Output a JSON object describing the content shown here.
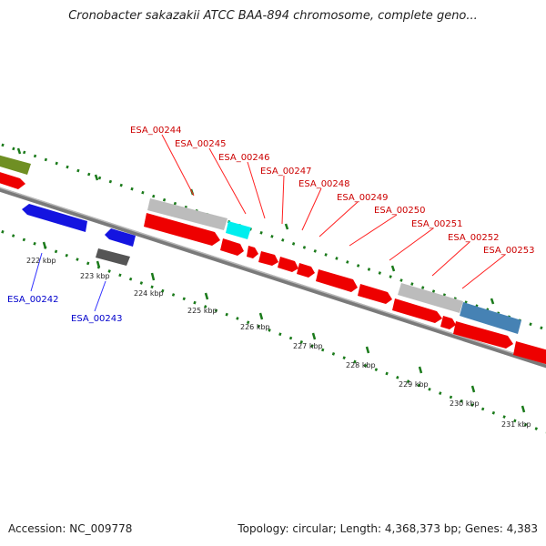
{
  "header": {
    "title": "Cronobacter sakazakii ATCC BAA-894 chromosome, complete geno..."
  },
  "footer": {
    "accession": "Accession: NC_009778",
    "summary": "Topology: circular; Length: 4,368,373 bp; Genes: 4,383"
  },
  "map": {
    "colors": {
      "forward_gene": "#ff0000",
      "reverse_gene": "#0000ee",
      "forward_label": "#cc0000",
      "reverse_label": "#0000cc",
      "backbone": "#808080",
      "tick": "#1a7a1a",
      "dotted_ring": "#1a7a1a"
    },
    "ruler_labels": [
      {
        "text": "222 kbp"
      },
      {
        "text": "223 kbp"
      },
      {
        "text": "224 kbp"
      },
      {
        "text": "225 kbp"
      },
      {
        "text": "226 kbp"
      },
      {
        "text": "227 kbp"
      },
      {
        "text": "228 kbp"
      },
      {
        "text": "229 kbp"
      },
      {
        "text": "230 kbp"
      },
      {
        "text": "231 kbp"
      }
    ],
    "forward_gene_labels": [
      {
        "text": "ESA_00244"
      },
      {
        "text": "ESA_00245"
      },
      {
        "text": "ESA_00246"
      },
      {
        "text": "ESA_00247"
      },
      {
        "text": "ESA_00248"
      },
      {
        "text": "ESA_00249"
      },
      {
        "text": "ESA_00250"
      },
      {
        "text": "ESA_00251"
      },
      {
        "text": "ESA_00252"
      },
      {
        "text": "ESA_00253"
      }
    ],
    "reverse_gene_labels": [
      {
        "text": "ESA_00242"
      },
      {
        "text": "ESA_00243"
      }
    ]
  }
}
